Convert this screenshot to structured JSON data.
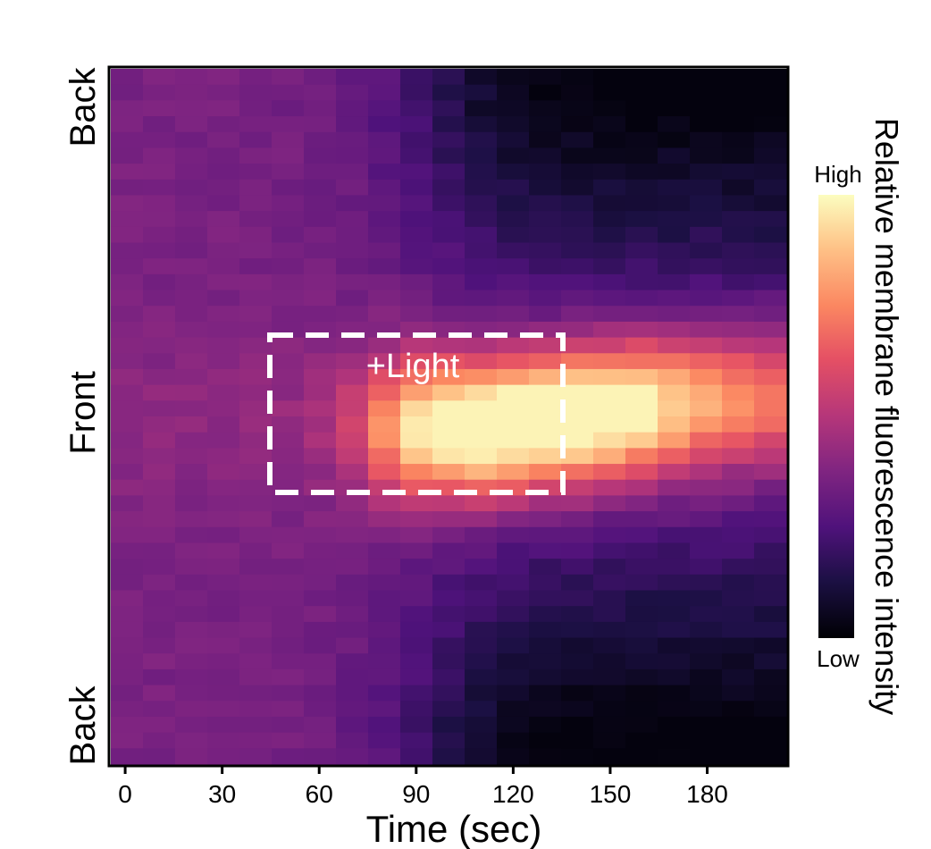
{
  "chart_data": {
    "type": "heatmap",
    "xlabel": "Time (sec)",
    "x_ticks": [
      0,
      30,
      60,
      90,
      120,
      150,
      180
    ],
    "xlim": [
      -5,
      205
    ],
    "y_tick_labels": {
      "top": "Back",
      "middle": "Front",
      "bottom": "Back"
    },
    "colorbar": {
      "label": "Relative membrane fluorescence intensity",
      "high_label": "High",
      "low_label": "Low",
      "colormap": "magma"
    },
    "annotation": {
      "label": "+Light",
      "x_range": [
        45,
        135
      ],
      "y_range_fraction": [
        0.38,
        0.61
      ]
    },
    "columns": 21,
    "column_times": [
      0,
      10,
      20,
      30,
      40,
      50,
      60,
      70,
      80,
      90,
      100,
      110,
      120,
      130,
      140,
      150,
      160,
      170,
      180,
      190,
      200
    ],
    "row_positions": [
      "back",
      "front",
      "back"
    ],
    "description_values": "relative intensity 0 (low) to 1 (high); front peak ~0.97 at 110-130 s, back regions drop to ~0.03 at 150-200 s"
  }
}
